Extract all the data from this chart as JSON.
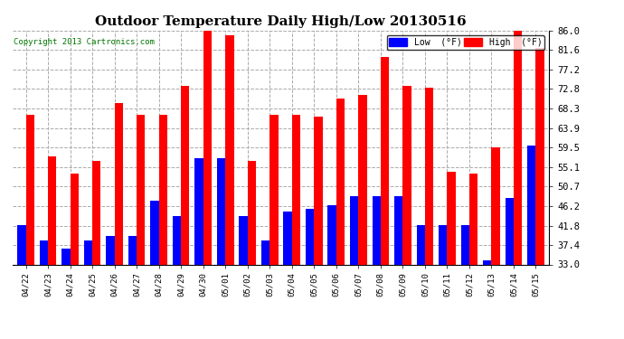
{
  "title": "Outdoor Temperature Daily High/Low 20130516",
  "copyright": "Copyright 2013 Cartronics.com",
  "dates": [
    "04/22",
    "04/23",
    "04/24",
    "04/25",
    "04/26",
    "04/27",
    "04/28",
    "04/29",
    "04/30",
    "05/01",
    "05/02",
    "05/03",
    "05/04",
    "05/05",
    "05/06",
    "05/07",
    "05/08",
    "05/09",
    "05/10",
    "05/11",
    "05/12",
    "05/13",
    "05/14",
    "05/15"
  ],
  "high": [
    67.0,
    57.5,
    53.5,
    56.5,
    69.5,
    67.0,
    67.0,
    73.5,
    86.0,
    85.0,
    56.5,
    67.0,
    67.0,
    66.5,
    70.5,
    71.5,
    80.0,
    73.5,
    73.0,
    54.0,
    53.5,
    59.5,
    86.0,
    82.0
  ],
  "low": [
    42.0,
    38.5,
    36.5,
    38.5,
    39.5,
    39.5,
    47.5,
    44.0,
    57.0,
    57.0,
    44.0,
    38.5,
    45.0,
    45.5,
    46.5,
    48.5,
    48.5,
    48.5,
    42.0,
    42.0,
    42.0,
    34.0,
    48.0,
    60.0
  ],
  "high_color": "#ff0000",
  "low_color": "#0000ff",
  "bg_color": "#ffffff",
  "plot_bg_color": "#ffffff",
  "grid_color": "#aaaaaa",
  "yticks": [
    33.0,
    37.4,
    41.8,
    46.2,
    50.7,
    55.1,
    59.5,
    63.9,
    68.3,
    72.8,
    77.2,
    81.6,
    86.0
  ],
  "ylim": [
    33.0,
    86.0
  ],
  "legend_low_label": "Low  (°F)",
  "legend_high_label": "High  (°F)",
  "bar_width": 0.38,
  "figsize": [
    6.9,
    3.75
  ],
  "dpi": 100
}
